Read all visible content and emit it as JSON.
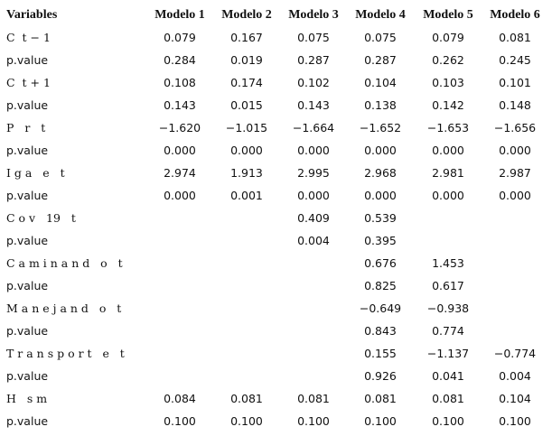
{
  "table": {
    "header": [
      "Variables",
      "Modelo 1",
      "Modelo 2",
      "Modelo 3",
      "Modelo 4",
      "Modelo 5",
      "Modelo 6"
    ],
    "rows": [
      [
        "C  t − 1",
        "0.079",
        "0.167",
        "0.075",
        "0.075",
        "0.079",
        "0.081"
      ],
      [
        "p.value",
        "0.284",
        "0.019",
        "0.287",
        "0.287",
        "0.262",
        "0.245"
      ],
      [
        "C  t + 1",
        "0.108",
        "0.174",
        "0.102",
        "0.104",
        "0.103",
        "0.101"
      ],
      [
        "p.value",
        "0.143",
        "0.015",
        "0.143",
        "0.138",
        "0.142",
        "0.148"
      ],
      [
        "P   r   t",
        "−1.620",
        "−1.015",
        "−1.664",
        "−1.652",
        "−1.653",
        "−1.656"
      ],
      [
        "p.value",
        "0.000",
        "0.000",
        "0.000",
        "0.000",
        "0.000",
        "0.000"
      ],
      [
        "I g a   e   t",
        "2.974",
        "1.913",
        "2.995",
        "2.968",
        "2.981",
        "2.987"
      ],
      [
        "p.value",
        "0.000",
        "0.001",
        "0.000",
        "0.000",
        "0.000",
        "0.000"
      ],
      [
        "C o v   19   t",
        null,
        null,
        "0.409",
        "0.539",
        null,
        null
      ],
      [
        "p.value",
        null,
        null,
        "0.004",
        "0.395",
        null,
        null
      ],
      [
        "C a m i n a n d   o   t",
        null,
        null,
        null,
        "0.676",
        "1.453",
        null
      ],
      [
        "p.value",
        null,
        null,
        null,
        "0.825",
        "0.617",
        null
      ],
      [
        "M a n e j a n d   o   t",
        null,
        null,
        null,
        "−0.649",
        "−0.938",
        null
      ],
      [
        "p.value",
        null,
        null,
        null,
        "0.843",
        "0.774",
        null
      ],
      [
        "T r a n s p o r t   e   t",
        null,
        null,
        null,
        "0.155",
        "−1.137",
        "−0.774"
      ],
      [
        "p.value",
        null,
        null,
        null,
        "0.926",
        "0.041",
        "0.004"
      ],
      [
        "H   s m",
        "0.084",
        "0.081",
        "0.081",
        "0.081",
        "0.081",
        "0.104"
      ],
      [
        "p.value",
        "0.100",
        "0.100",
        "0.100",
        "0.100",
        "0.100",
        "0.100"
      ]
    ]
  }
}
